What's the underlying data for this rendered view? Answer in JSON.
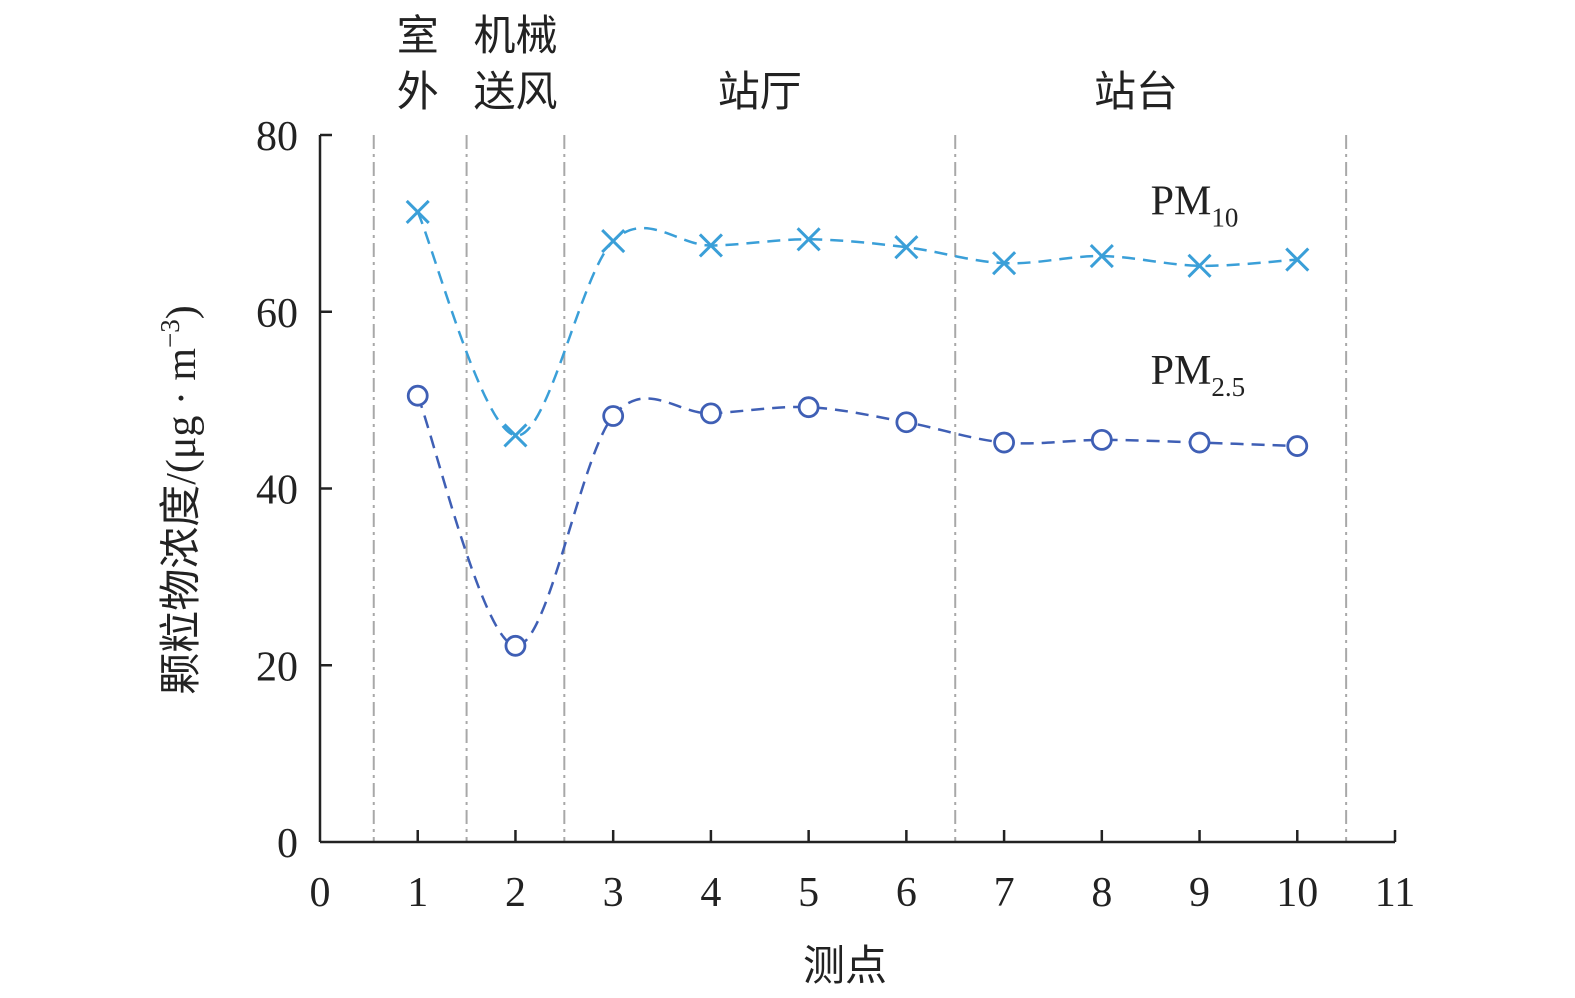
{
  "chart_data": {
    "type": "line",
    "xlabel": "测点",
    "ylabel": "颗粒物浓度/(μg · m",
    "ylabel_superscript": "−3",
    "ylabel_close": ")",
    "xlim": [
      0,
      11
    ],
    "ylim": [
      0,
      80
    ],
    "x_ticks": [
      0,
      1,
      2,
      3,
      4,
      5,
      6,
      7,
      8,
      9,
      10,
      11
    ],
    "y_ticks": [
      0,
      20,
      40,
      60,
      80
    ],
    "x": [
      1,
      2,
      3,
      4,
      5,
      6,
      7,
      8,
      9,
      10
    ],
    "dividers": [
      0.55,
      1.5,
      2.5,
      6.5,
      10.5
    ],
    "zones": [
      {
        "lines": [
          "室",
          "外"
        ],
        "x_center": 1.0
      },
      {
        "lines": [
          "机械",
          "送风"
        ],
        "x_center": 2.0
      },
      {
        "lines": [
          "站厅"
        ],
        "x_center": 4.5
      },
      {
        "lines": [
          "站台"
        ],
        "x_center": 8.35
      }
    ],
    "series": [
      {
        "name": "PM",
        "subscript": "10",
        "marker": "x",
        "color": "#3a9fd8",
        "values": [
          71.3,
          46.0,
          68.0,
          67.5,
          68.2,
          67.3,
          65.5,
          66.3,
          65.2,
          65.9
        ],
        "label_at": {
          "x": 8.5,
          "y": 71
        }
      },
      {
        "name": "PM",
        "subscript": "2.5",
        "marker": "circle",
        "color": "#3f5fb5",
        "values": [
          50.5,
          22.2,
          48.2,
          48.5,
          49.2,
          47.5,
          45.2,
          45.5,
          45.2,
          44.8
        ],
        "label_at": {
          "x": 8.5,
          "y": 51.8
        }
      }
    ],
    "grid": false,
    "legend": "none"
  }
}
